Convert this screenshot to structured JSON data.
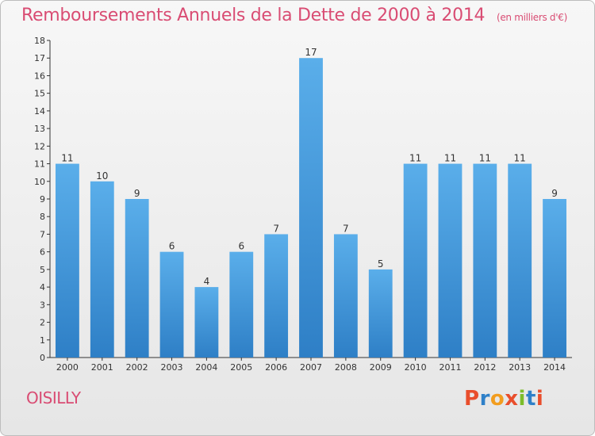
{
  "chart_data": {
    "type": "bar",
    "title": "Remboursements Annuels de la Dette de 2000 à 2014",
    "subtitle": "(en milliers d'€)",
    "categories": [
      "2000",
      "2001",
      "2002",
      "2003",
      "2004",
      "2005",
      "2006",
      "2007",
      "2008",
      "2009",
      "2010",
      "2011",
      "2012",
      "2013",
      "2014"
    ],
    "values": [
      11,
      10,
      9,
      6,
      4,
      6,
      7,
      17,
      7,
      5,
      11,
      11,
      11,
      11,
      9
    ],
    "ylim": [
      0,
      18
    ],
    "yticks": [
      0,
      1,
      2,
      3,
      4,
      5,
      6,
      7,
      8,
      9,
      10,
      11,
      12,
      13,
      14,
      15,
      16,
      17,
      18
    ],
    "grid": false,
    "bar_color": "#3b8ed8"
  },
  "footer": {
    "label": "OISILLY",
    "logo": {
      "letters": [
        "P",
        "r",
        "o",
        "x",
        "i",
        "t",
        "i"
      ],
      "colors": [
        "#e94e2c",
        "#2f80c8",
        "#f29d1f",
        "#e94e2c",
        "#7cbd2a",
        "#2f80c8",
        "#e94e2c"
      ]
    }
  }
}
